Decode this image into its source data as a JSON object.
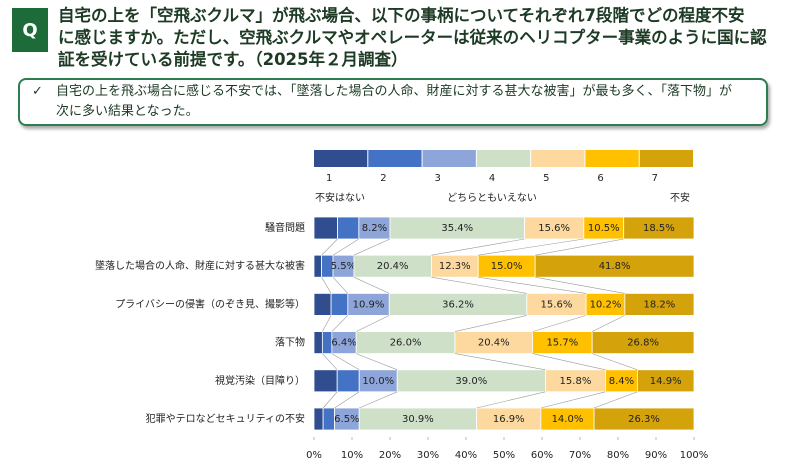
{
  "header": {
    "badge": "Q",
    "question_lines": [
      "自宅の上を「空飛ぶクルマ」が飛ぶ場合、以下の事柄についてそれぞれ7段階でどの程度不安",
      "に感じますか。ただし、空飛ぶクルマやオペレーターは従来のヘリコプター事業のように国に認",
      "証を受けている前提です。（2025年２月調査）"
    ]
  },
  "summary": {
    "check": "✓",
    "lines": [
      "自宅の上を飛ぶ場合に感じる不安では、「墜落した場合の人命、財産に対する甚大な被害」が最も多く、「落下物」が",
      "次に多い結果となった。"
    ]
  },
  "chart_data": {
    "type": "stacked-barh",
    "categories": [
      "騒音問題",
      "墜落した場合の人命、財産に対する甚大な被害",
      "プライバシーの侵害（のぞき見、撮影等）",
      "落下物",
      "視覚汚染（目障り）",
      "犯罪やテロなどセキュリティの不安"
    ],
    "series": [
      {
        "name": "1",
        "color": "#2f4d8f",
        "values": [
          6.2,
          2.0,
          4.5,
          2.2,
          6.1,
          2.4
        ]
      },
      {
        "name": "2",
        "color": "#4472c4",
        "values": [
          5.6,
          3.0,
          4.4,
          2.5,
          5.8,
          3.0
        ]
      },
      {
        "name": "3",
        "color": "#8ea5d9",
        "values": [
          8.2,
          5.5,
          10.9,
          6.4,
          10.0,
          6.5
        ],
        "value_labels": [
          "8.2%",
          "5.5%",
          "10.9%",
          "6.4%",
          "10.0%",
          "6.5%"
        ]
      },
      {
        "name": "4",
        "color": "#cfe0c9",
        "values": [
          35.4,
          20.4,
          36.2,
          26.0,
          39.0,
          30.9
        ],
        "value_labels": [
          "35.4%",
          "20.4%",
          "36.2%",
          "26.0%",
          "39.0%",
          "30.9%"
        ]
      },
      {
        "name": "5",
        "color": "#fdd9a0",
        "values": [
          15.6,
          12.3,
          15.6,
          20.4,
          15.8,
          16.9
        ],
        "value_labels": [
          "15.6%",
          "12.3%",
          "15.6%",
          "20.4%",
          "15.8%",
          "16.9%"
        ]
      },
      {
        "name": "6",
        "color": "#ffc000",
        "values": [
          10.5,
          15.0,
          10.2,
          15.7,
          8.4,
          14.0
        ],
        "value_labels": [
          "10.5%",
          "15.0%",
          "10.2%",
          "15.7%",
          "8.4%",
          "14.0%"
        ]
      },
      {
        "name": "7",
        "color": "#d4a20a",
        "values": [
          18.5,
          41.8,
          18.2,
          26.8,
          14.9,
          26.3
        ],
        "value_labels": [
          "18.5%",
          "41.8%",
          "18.2%",
          "26.8%",
          "14.9%",
          "26.3%"
        ]
      }
    ],
    "annotations": [
      "不安はない",
      "どちらともいえない",
      "不安"
    ],
    "xlim": [
      0,
      100
    ],
    "xticks": [
      {
        "value": 0,
        "label": "0%"
      },
      {
        "value": 10,
        "label": "10%"
      },
      {
        "value": 20,
        "label": "20%"
      },
      {
        "value": 30,
        "label": "30%"
      },
      {
        "value": 40,
        "label": "40%"
      },
      {
        "value": 50,
        "label": "50%"
      },
      {
        "value": 60,
        "label": "60%"
      },
      {
        "value": 70,
        "label": "70%"
      },
      {
        "value": 80,
        "label": "80%"
      },
      {
        "value": 90,
        "label": "90%"
      },
      {
        "value": 100,
        "label": "100%"
      }
    ]
  }
}
